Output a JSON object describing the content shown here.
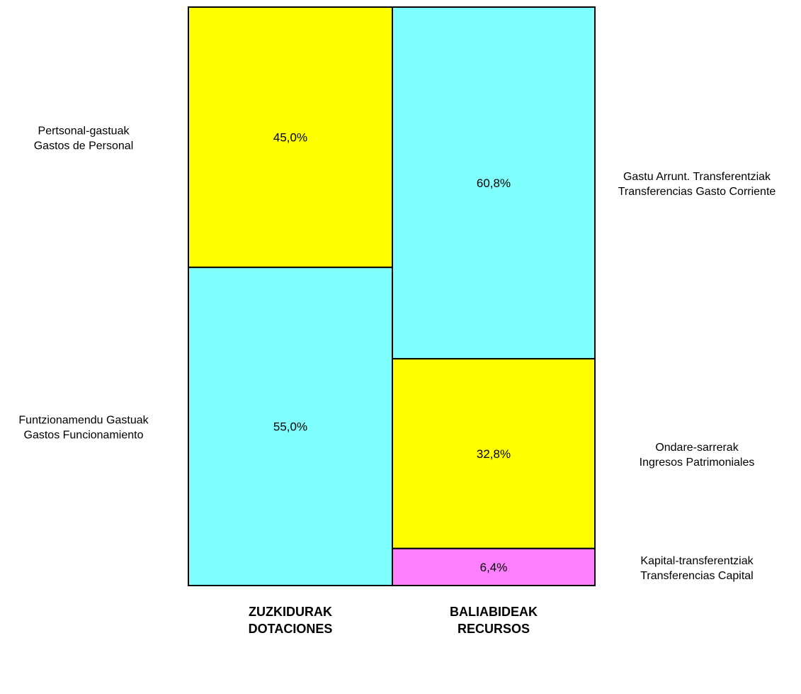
{
  "chart_data": {
    "type": "bar",
    "stacked": true,
    "normalized": true,
    "categories": [
      [
        "ZUZKIDURAK",
        "DOTACIONES"
      ],
      [
        "BALIABIDEAK",
        "RECURSOS"
      ]
    ],
    "columns": [
      {
        "segments": [
          {
            "label": [
              "Pertsonal-gastuak",
              "Gastos de Personal"
            ],
            "value": 45.0,
            "value_label": "45,0%",
            "color": "#ffff00",
            "label_side": "left"
          },
          {
            "label": [
              "Funtzionamendu Gastuak",
              "Gastos Funcionamiento"
            ],
            "value": 55.0,
            "value_label": "55,0%",
            "color": "#80ffff",
            "label_side": "left"
          }
        ]
      },
      {
        "segments": [
          {
            "label": [
              "Gastu Arrunt. Transferentziak",
              "Transferencias Gasto Corriente"
            ],
            "value": 60.8,
            "value_label": "60,8%",
            "color": "#80ffff",
            "label_side": "right"
          },
          {
            "label": [
              "Ondare-sarrerak",
              "Ingresos Patrimoniales"
            ],
            "value": 32.8,
            "value_label": "32,8%",
            "color": "#ffff00",
            "label_side": "right"
          },
          {
            "label": [
              "Kapital-transferentziak",
              "Transferencias Capital"
            ],
            "value": 6.4,
            "value_label": "6,4%",
            "color": "#ff80ff",
            "label_side": "right"
          }
        ]
      }
    ],
    "ylim": [
      0,
      100
    ],
    "grid": false,
    "legend": "none"
  }
}
